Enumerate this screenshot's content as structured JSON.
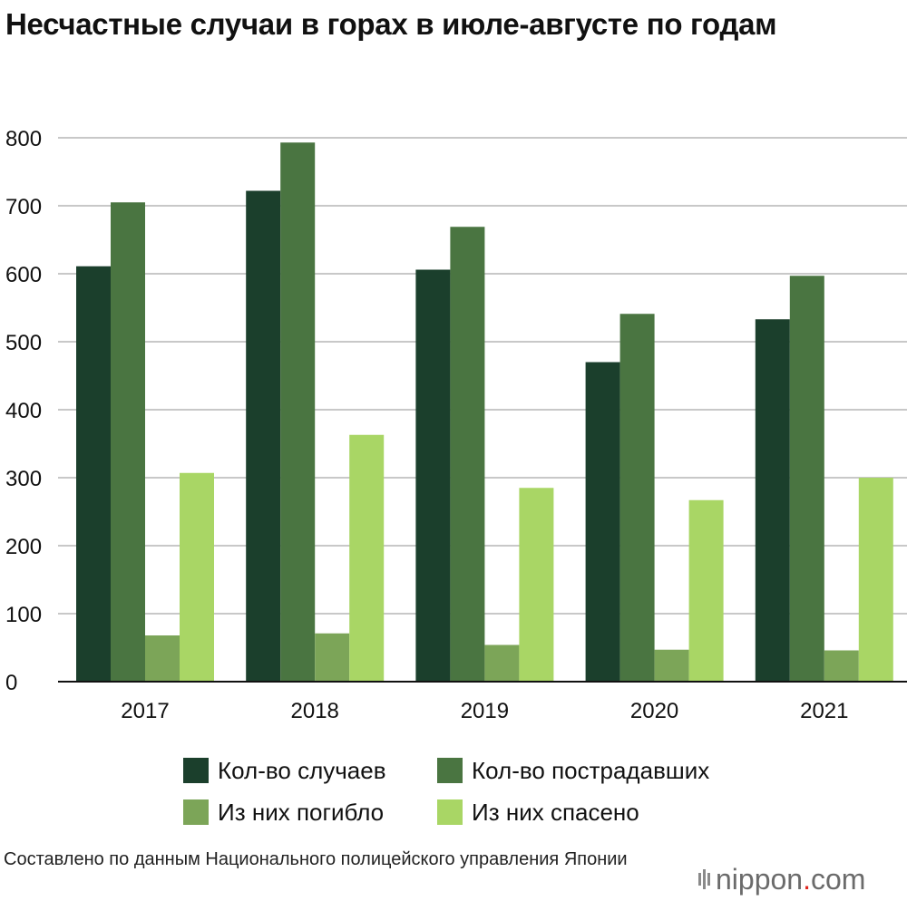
{
  "title": "Несчастные случаи в горах в июле-августе по годам",
  "source_note": "Составлено по данным Национального полицейского управления Японии",
  "logo": {
    "name": "nippon",
    "dot": ".",
    "suffix": "com"
  },
  "colors": {
    "cases": "#1b3f2c",
    "victims": "#4a7541",
    "dead": "#7ca558",
    "rescued": "#a9d665",
    "grid": "#c8c8c8",
    "axis": "#111111"
  },
  "chart_data": {
    "type": "bar",
    "title": "Несчастные случаи в горах в июле-августе по годам",
    "xlabel": "",
    "ylabel": "",
    "ylim": [
      0,
      800
    ],
    "yticks": [
      0,
      100,
      200,
      300,
      400,
      500,
      600,
      700,
      800
    ],
    "grid": true,
    "legend_position": "bottom",
    "categories": [
      "2017",
      "2018",
      "2019",
      "2020",
      "2021"
    ],
    "series": [
      {
        "name": "Кол-во случаев",
        "color_key": "cases",
        "values": [
          611,
          722,
          606,
          470,
          533
        ]
      },
      {
        "name": "Кол-во пострадавших",
        "color_key": "victims",
        "values": [
          705,
          793,
          669,
          541,
          597
        ]
      },
      {
        "name": "Из них погибло",
        "color_key": "dead",
        "values": [
          68,
          71,
          54,
          47,
          46
        ]
      },
      {
        "name": "Из них спасено",
        "color_key": "rescued",
        "values": [
          307,
          363,
          285,
          267,
          300
        ]
      }
    ]
  }
}
